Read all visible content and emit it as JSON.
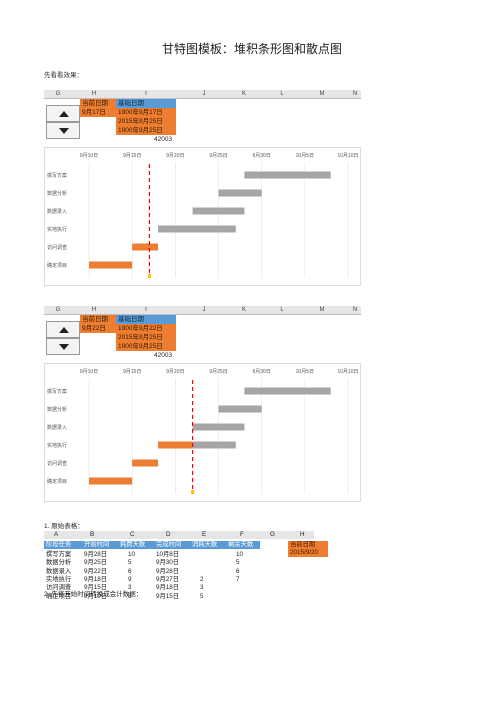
{
  "doc": {
    "title": "甘特图模板：堆积条形图和散点图",
    "intro": "先看看效果：",
    "section1": "1. 原始表格：",
    "section2": "2. 先将开始时间转换成会计数据："
  },
  "sheet_columns": [
    "G",
    "H",
    "I",
    "J",
    "K",
    "L",
    "M",
    "N"
  ],
  "block1": {
    "label_current": "当前日期",
    "label_base": "基础日期",
    "current_value": "9月17日",
    "base_values": [
      "1900年9月17日",
      "2015年9月25日",
      "1900年9月25日"
    ],
    "number": "42003"
  },
  "block2": {
    "label_current": "当前日期",
    "label_base": "基础日期",
    "current_value": "9月22日",
    "base_values": [
      "1900年9月22日",
      "2015年9月25日",
      "1900年9月25日"
    ],
    "number": "42003"
  },
  "chart_data": [
    {
      "type": "bar",
      "x_ticks": [
        "9月10日",
        "9月15日",
        "9月20日",
        "9月25日",
        "9月30日",
        "10月5日",
        "10月10日"
      ],
      "tasks": [
        "撰写方案",
        "数据分析",
        "数据录入",
        "实地执行",
        "访问调查",
        "确定项目"
      ],
      "start_day": [
        28,
        25,
        22,
        18,
        15,
        10
      ],
      "done": [
        0,
        0,
        0,
        0,
        3,
        5
      ],
      "remain": [
        10,
        5,
        6,
        9,
        0,
        0
      ],
      "marker_date": 17,
      "colors": {
        "done": "#ed7d31",
        "remain": "#a5a5a5",
        "marker": "#ff0000",
        "marker_dot": "#ffc000"
      }
    },
    {
      "type": "bar",
      "x_ticks": [
        "9月10日",
        "9月15日",
        "9月20日",
        "9月25日",
        "9月30日",
        "10月5日",
        "10月10日"
      ],
      "tasks": [
        "撰写方案",
        "数据分析",
        "数据录入",
        "实地执行",
        "访问调查",
        "确定项目"
      ],
      "start_day": [
        28,
        25,
        22,
        18,
        15,
        10
      ],
      "done": [
        0,
        0,
        0,
        4,
        3,
        5
      ],
      "remain": [
        10,
        5,
        6,
        5,
        0,
        0
      ],
      "marker_date": 22,
      "colors": {
        "done": "#ed7d31",
        "remain": "#a5a5a5",
        "marker": "#ff0000",
        "marker_dot": "#ffc000"
      }
    }
  ],
  "table": {
    "col_letters": [
      "A",
      "B",
      "C",
      "D",
      "E",
      "F",
      "G",
      "H"
    ],
    "headers": [
      "阶段任务",
      "开始时间",
      "耗费天数",
      "完成时间",
      "消耗天数",
      "剩余天数"
    ],
    "rows": [
      [
        "撰写方案",
        "9月28日",
        "10",
        "10月8日",
        "",
        "10"
      ],
      [
        "数据分析",
        "9月25日",
        "5",
        "9月30日",
        "",
        "5"
      ],
      [
        "数据录入",
        "9月22日",
        "6",
        "9月28日",
        "",
        "6"
      ],
      [
        "实地执行",
        "9月18日",
        "9",
        "9月27日",
        "2",
        "7"
      ],
      [
        "访问调查",
        "9月15日",
        "3",
        "9月18日",
        "3",
        ""
      ],
      [
        "确定项目",
        "9月10日",
        "5",
        "9月15日",
        "5",
        ""
      ]
    ],
    "side_label": "当前日期",
    "side_value": "2015/9/20"
  }
}
